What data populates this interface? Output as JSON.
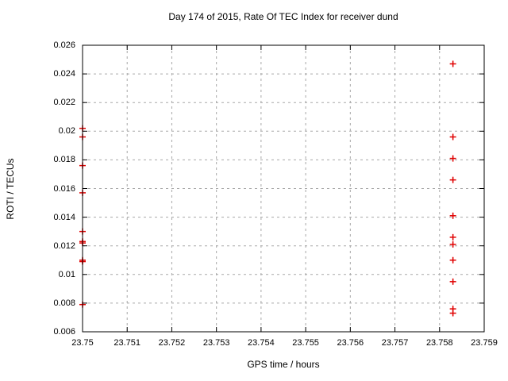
{
  "chart_data": {
    "type": "scatter",
    "title": "Day 174 of 2015, Rate Of TEC Index for receiver dund",
    "xlabel": "GPS time / hours",
    "ylabel": "ROTI / TECUs",
    "xlim": [
      23.75,
      23.759
    ],
    "ylim": [
      0.006,
      0.026
    ],
    "x_tick_values": [
      23.75,
      23.751,
      23.752,
      23.753,
      23.754,
      23.755,
      23.756,
      23.757,
      23.758,
      23.759
    ],
    "x_tick_labels": [
      "23.75",
      "23.751",
      "23.752",
      "23.753",
      "23.754",
      "23.755",
      "23.756",
      "23.757",
      "23.758",
      "23.759"
    ],
    "y_tick_values": [
      0.006,
      0.008,
      0.01,
      0.012,
      0.014,
      0.016,
      0.018,
      0.02,
      0.022,
      0.024,
      0.026
    ],
    "y_tick_labels": [
      "0.006",
      "0.008",
      "0.01",
      "0.012",
      "0.014",
      "0.016",
      "0.018",
      "0.02",
      "0.022",
      "0.024",
      "0.026"
    ],
    "grid": true,
    "legend": false,
    "marker": "plus",
    "colors": {
      "marker": "#e00000",
      "grid": "#a8a8a8",
      "border": "#000000",
      "background": "#ffffff"
    },
    "series": [
      {
        "name": "ROTI",
        "points": [
          [
            23.75,
            0.0202
          ],
          [
            23.75,
            0.0196
          ],
          [
            23.75,
            0.0176
          ],
          [
            23.75,
            0.0157
          ],
          [
            23.75,
            0.013
          ],
          [
            23.75,
            0.0123
          ],
          [
            23.75,
            0.0122
          ],
          [
            23.75,
            0.011
          ],
          [
            23.75,
            0.0109
          ],
          [
            23.75,
            0.0079
          ],
          [
            23.7583,
            0.0247
          ],
          [
            23.7583,
            0.0196
          ],
          [
            23.7583,
            0.0181
          ],
          [
            23.7583,
            0.0166
          ],
          [
            23.7583,
            0.0141
          ],
          [
            23.7583,
            0.0126
          ],
          [
            23.7583,
            0.0121
          ],
          [
            23.7583,
            0.011
          ],
          [
            23.7583,
            0.0095
          ],
          [
            23.7583,
            0.0076
          ],
          [
            23.7583,
            0.0073
          ]
        ]
      }
    ]
  }
}
